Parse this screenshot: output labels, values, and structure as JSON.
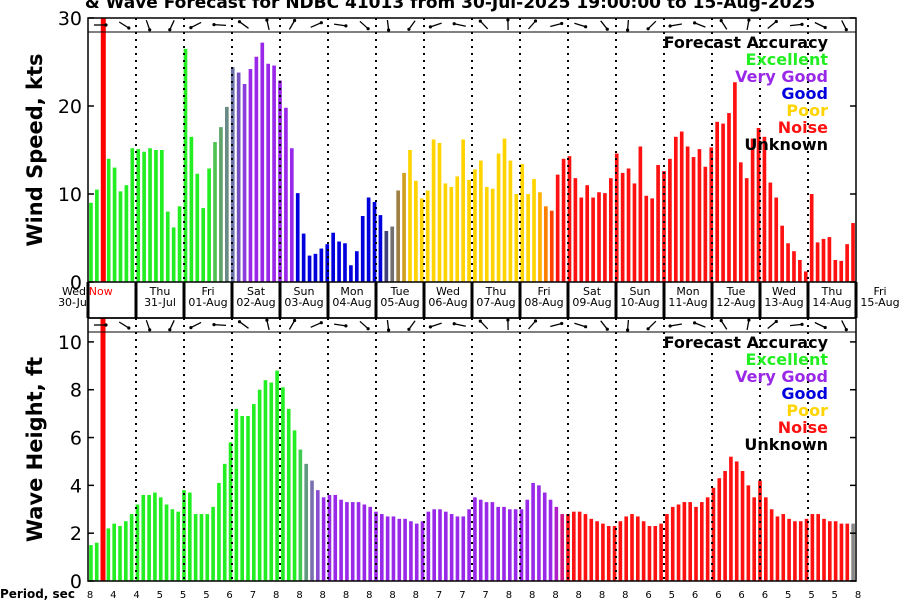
{
  "title": "& Wave Forecast for NDBC 41013 from 30-Jul-2025 19:00:00 to 15-Aug-2025",
  "now_label": "Now",
  "period_label": "Period, sec",
  "legend": {
    "title": "Forecast Accuracy",
    "items": [
      {
        "label": "Excellent",
        "color": "#22ee22"
      },
      {
        "label": "Very Good",
        "color": "#9a28e8"
      },
      {
        "label": "Good",
        "color": "#0000dd"
      },
      {
        "label": "Poor",
        "color": "#ffd400"
      },
      {
        "label": "Noise",
        "color": "#ff1111"
      },
      {
        "label": "Unknown",
        "color": "#000000"
      }
    ]
  },
  "day_labels": [
    {
      "day": "Wed",
      "date": "30-Jul"
    },
    {
      "day": "Thu",
      "date": "31-Jul"
    },
    {
      "day": "Fri",
      "date": "01-Aug"
    },
    {
      "day": "Sat",
      "date": "02-Aug"
    },
    {
      "day": "Sun",
      "date": "03-Aug"
    },
    {
      "day": "Mon",
      "date": "04-Aug"
    },
    {
      "day": "Tue",
      "date": "05-Aug"
    },
    {
      "day": "Wed",
      "date": "06-Aug"
    },
    {
      "day": "Thu",
      "date": "07-Aug"
    },
    {
      "day": "Fri",
      "date": "08-Aug"
    },
    {
      "day": "Sat",
      "date": "09-Aug"
    },
    {
      "day": "Sun",
      "date": "10-Aug"
    },
    {
      "day": "Mon",
      "date": "11-Aug"
    },
    {
      "day": "Tue",
      "date": "12-Aug"
    },
    {
      "day": "Wed",
      "date": "13-Aug"
    },
    {
      "day": "Thu",
      "date": "14-Aug"
    },
    {
      "day": "Fri",
      "date": "15-Aug"
    }
  ],
  "period_values": [
    "8",
    "4",
    "4",
    "5",
    "5",
    "5",
    "6",
    "7",
    "8",
    "8",
    "8",
    "8",
    "8",
    "8",
    "8",
    "7",
    "7",
    "7",
    "8",
    "8",
    "8",
    "8",
    "8",
    "8",
    "6",
    "5",
    "6",
    "6",
    "6",
    "6",
    "5",
    "5",
    "5",
    "8"
  ],
  "chart_data": [
    {
      "type": "bar",
      "ylabel": "Wind Speed, kts",
      "ylim": [
        0,
        30
      ],
      "yticks": [
        0,
        10,
        20,
        30
      ],
      "values": [
        9,
        10.5,
        0,
        14,
        13,
        10.3,
        11,
        15.2,
        15.1,
        14.8,
        15.2,
        15,
        15,
        8,
        6.2,
        8.6,
        26.5,
        16.5,
        12.3,
        8.4,
        12.9,
        15.9,
        17.6,
        19.9,
        24.4,
        23.8,
        22.5,
        24.2,
        25.6,
        27.2,
        24.8,
        24.6,
        22.9,
        19.8,
        15.2,
        10.1,
        5.5,
        3,
        3.2,
        3.8,
        4.3,
        5.6,
        4.6,
        4.4,
        1.9,
        3.5,
        7.5,
        9.6,
        9.1,
        7.6,
        5.8,
        6.3,
        10.4,
        12.4,
        15,
        11.5,
        9.5,
        10.4,
        16.2,
        15.8,
        11.2,
        10.8,
        12,
        16.2,
        11.6,
        12.8,
        13.8,
        10.8,
        10.6,
        14.6,
        16.3,
        13.8,
        10,
        13.4,
        10,
        11.7,
        10.2,
        8.6,
        8.1,
        12.2,
        14,
        14.3,
        11.8,
        9.6,
        11,
        9.6,
        10.2,
        10.1,
        11.8,
        14.6,
        12.4,
        12.9,
        11.2,
        15.4,
        9.8,
        9.5,
        13.3,
        12.6,
        14,
        16.5,
        17.1,
        15.4,
        14.2,
        15.1,
        13.1,
        15.3,
        18.2,
        18,
        19.2,
        22.7,
        13.6,
        11.8,
        16.3,
        17.5,
        16.5,
        11.3,
        9.6,
        6.4,
        4.4,
        3.5,
        2.5,
        1.2,
        10,
        4.5,
        4.9,
        5.1,
        2.5,
        2.4,
        4.3,
        6.7
      ],
      "colors": [
        "#22ee22",
        "#22ee22",
        "#22ee22",
        "#22ee22",
        "#22ee22",
        "#22ee22",
        "#22ee22",
        "#22ee22",
        "#22ee22",
        "#22ee22",
        "#22ee22",
        "#22ee22",
        "#22ee22",
        "#22ee22",
        "#22ee22",
        "#22ee22",
        "#22ee22",
        "#22ee22",
        "#22ee22",
        "#22ee22",
        "#22ee22",
        "#4fc24f",
        "#5fa36a",
        "#6a8a86",
        "#6a70a8",
        "#7450c0",
        "#8a3cdc",
        "#9a28e8",
        "#9a28e8",
        "#9a28e8",
        "#9a28e8",
        "#9a28e8",
        "#9a28e8",
        "#9a28e8",
        "#9a28e8",
        "#0000dd",
        "#0000dd",
        "#0000dd",
        "#0000dd",
        "#0000dd",
        "#0000dd",
        "#0000dd",
        "#0000dd",
        "#0000dd",
        "#0000dd",
        "#0000dd",
        "#0000dd",
        "#0000dd",
        "#0000dd",
        "#0000dd",
        "#40407a",
        "#707070",
        "#a08040",
        "#d0a020",
        "#ffd400",
        "#ffd400",
        "#ffd400",
        "#ffd400",
        "#ffd400",
        "#ffd400",
        "#ffd400",
        "#ffd400",
        "#ffd400",
        "#ffd400",
        "#ffd400",
        "#ffd400",
        "#ffd400",
        "#ffd400",
        "#ffd400",
        "#ffd400",
        "#ffd400",
        "#ffd400",
        "#ffd400",
        "#ffd400",
        "#ffd400",
        "#ffd400",
        "#ffb000",
        "#ff8000",
        "#ff4400",
        "#ff1111",
        "#ff1111",
        "#ff1111",
        "#ff1111",
        "#ff1111",
        "#ff1111",
        "#ff1111",
        "#ff1111",
        "#ff1111",
        "#ff1111",
        "#ff1111",
        "#ff1111",
        "#ff1111",
        "#ff1111",
        "#ff1111",
        "#ff1111",
        "#ff1111",
        "#ff1111",
        "#ff1111",
        "#ff1111",
        "#ff1111",
        "#ff1111",
        "#ff1111",
        "#ff1111",
        "#ff1111",
        "#ff1111",
        "#ff1111",
        "#ff1111",
        "#ff1111",
        "#ff1111",
        "#ff1111",
        "#ff1111",
        "#ff1111",
        "#ff1111",
        "#ff1111",
        "#ff1111",
        "#ff1111",
        "#ff1111",
        "#ff1111",
        "#ff1111",
        "#ff1111",
        "#ff1111",
        "#ff1111",
        "#ff1111",
        "#ff1111",
        "#ff1111",
        "#ff1111",
        "#ff1111",
        "#ff1111",
        "#ff1111",
        "#ff1111"
      ]
    },
    {
      "type": "bar",
      "ylabel": "Wave Height, ft",
      "ylim": [
        0,
        11
      ],
      "yticks": [
        0,
        2,
        4,
        6,
        8,
        10
      ],
      "values": [
        1.5,
        1.6,
        0,
        2.2,
        2.4,
        2.3,
        2.5,
        2.8,
        3.2,
        3.6,
        3.6,
        3.7,
        3.5,
        3.2,
        3,
        2.9,
        3.8,
        3.7,
        2.8,
        2.8,
        2.8,
        3.1,
        4.1,
        4.9,
        5.8,
        7.2,
        6.9,
        6.9,
        7.4,
        8,
        8.4,
        8.3,
        8.8,
        8.1,
        7.2,
        6.3,
        5.5,
        4.9,
        4.2,
        3.8,
        3.5,
        3.6,
        3.6,
        3.4,
        3.3,
        3.3,
        3.3,
        3.2,
        3.1,
        2.9,
        2.8,
        2.7,
        2.7,
        2.6,
        2.6,
        2.5,
        2.4,
        2.5,
        2.9,
        3,
        3,
        2.9,
        2.8,
        2.7,
        2.7,
        3,
        3.5,
        3.4,
        3.3,
        3.3,
        3.1,
        3.1,
        3,
        3,
        3,
        3.4,
        4.1,
        4,
        3.7,
        3.4,
        3.1,
        2.8,
        2.8,
        2.9,
        2.9,
        2.8,
        2.6,
        2.5,
        2.4,
        2.3,
        2.3,
        2.5,
        2.7,
        2.8,
        2.7,
        2.5,
        2.3,
        2.3,
        2.4,
        2.8,
        3.1,
        3.2,
        3.3,
        3.3,
        3.1,
        3.3,
        3.5,
        3.9,
        4.3,
        4.6,
        5.2,
        5,
        4.6,
        4,
        3.5,
        4.2,
        3.5,
        3,
        2.7,
        2.8,
        2.6,
        2.5,
        2.5,
        2.6,
        2.8,
        2.8,
        2.6,
        2.5,
        2.5,
        2.4,
        2.4,
        2.4
      ],
      "colors": [
        "#22ee22",
        "#22ee22",
        "#22ee22",
        "#22ee22",
        "#22ee22",
        "#22ee22",
        "#22ee22",
        "#22ee22",
        "#22ee22",
        "#22ee22",
        "#22ee22",
        "#22ee22",
        "#22ee22",
        "#22ee22",
        "#22ee22",
        "#22ee22",
        "#22ee22",
        "#22ee22",
        "#22ee22",
        "#22ee22",
        "#22ee22",
        "#22ee22",
        "#22ee22",
        "#22ee22",
        "#22ee22",
        "#22ee22",
        "#22ee22",
        "#22ee22",
        "#22ee22",
        "#22ee22",
        "#22ee22",
        "#22ee22",
        "#22ee22",
        "#22ee22",
        "#22ee22",
        "#22ee22",
        "#40cc50",
        "#609a80",
        "#7a70b0",
        "#8a4cd0",
        "#9a28e8",
        "#9a28e8",
        "#9a28e8",
        "#9a28e8",
        "#9a28e8",
        "#9a28e8",
        "#9a28e8",
        "#9a28e8",
        "#9a28e8",
        "#9a28e8",
        "#9a28e8",
        "#9a28e8",
        "#9a28e8",
        "#9a28e8",
        "#9a28e8",
        "#9a28e8",
        "#9a28e8",
        "#9a28e8",
        "#9a28e8",
        "#9a28e8",
        "#9a28e8",
        "#9a28e8",
        "#9a28e8",
        "#9a28e8",
        "#9a28e8",
        "#9a28e8",
        "#9a28e8",
        "#9a28e8",
        "#9a28e8",
        "#9a28e8",
        "#9a28e8",
        "#9a28e8",
        "#9a28e8",
        "#9a28e8",
        "#9a28e8",
        "#9a28e8",
        "#9a28e8",
        "#9a28e8",
        "#9a28e8",
        "#9a28e8",
        "#b020c8",
        "#d01888",
        "#ff1111",
        "#ff1111",
        "#ff1111",
        "#ff1111",
        "#ff1111",
        "#ff1111",
        "#ff1111",
        "#ff1111",
        "#ff1111",
        "#ff1111",
        "#ff1111",
        "#ff1111",
        "#ff1111",
        "#ff1111",
        "#ff1111",
        "#ff1111",
        "#ff1111",
        "#ff1111",
        "#ff1111",
        "#ff1111",
        "#ff1111",
        "#ff1111",
        "#ff1111",
        "#ff1111",
        "#ff1111",
        "#ff1111",
        "#ff1111",
        "#ff1111",
        "#ff1111",
        "#ff1111",
        "#ff1111",
        "#ff1111",
        "#ff1111",
        "#ff1111",
        "#ff1111",
        "#ff1111",
        "#ff1111",
        "#ff1111",
        "#ff1111",
        "#ff1111",
        "#ff1111",
        "#ff1111",
        "#ff1111",
        "#ff1111",
        "#ff1111",
        "#ff1111",
        "#ff1111",
        "#ff1111",
        "#ff1111"
      ]
    }
  ]
}
